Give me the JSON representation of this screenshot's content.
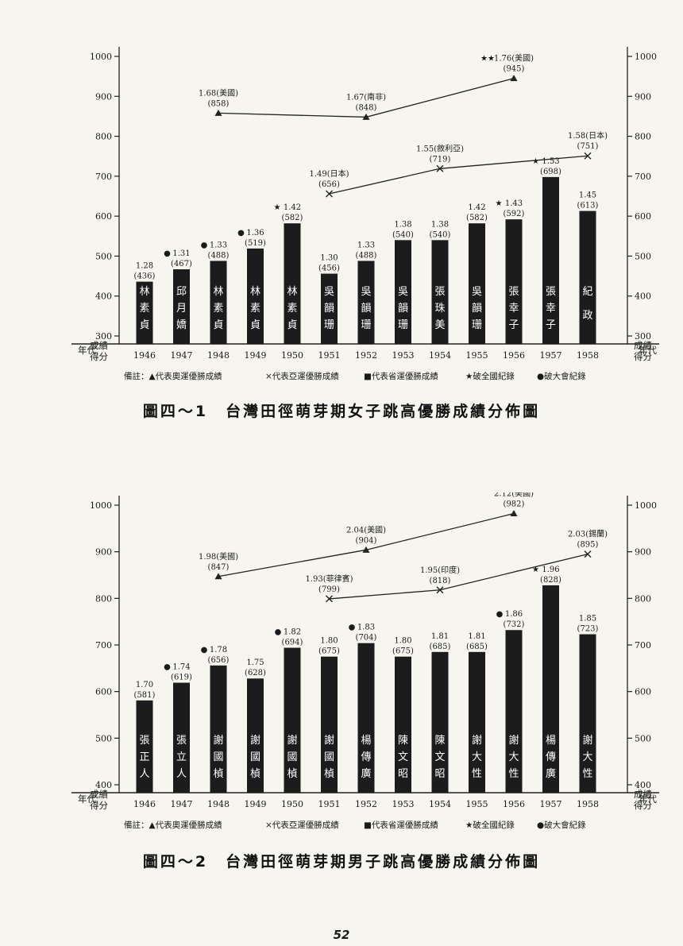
{
  "page_number": "52",
  "legend": {
    "prefix": "備註：",
    "olympic": "▲代表奧運優勝成績",
    "asian": "×代表亞運優勝成績",
    "provincial": "■代表省運優勝成績",
    "national_record": "★破全國紀錄",
    "meet_record": "●破大會紀錄"
  },
  "axis": {
    "score_label_1": "成績",
    "score_label_2": "得分",
    "year_label": "年代"
  },
  "chart_data": [
    {
      "type": "bar",
      "title": "圖四～1　台灣田徑萌芽期女子跳高優勝成績分佈圖",
      "ylim": [
        300,
        1000
      ],
      "yticks": [
        1000,
        900,
        800,
        700,
        600,
        500,
        400,
        300
      ],
      "categories": [
        "1946",
        "1947",
        "1948",
        "1949",
        "1950",
        "1951",
        "1952",
        "1953",
        "1954",
        "1955",
        "1956",
        "1957",
        "1958"
      ],
      "bar_color": "#1c1c1c",
      "bars": [
        {
          "year": "1946",
          "mark": "1.28",
          "score": 436,
          "athlete": "林素貞",
          "record": ""
        },
        {
          "year": "1947",
          "mark": "1.31",
          "score": 467,
          "athlete": "邱月嬌",
          "record": "meet"
        },
        {
          "year": "1948",
          "mark": "1.33",
          "score": 488,
          "athlete": "林素貞",
          "record": "meet"
        },
        {
          "year": "1949",
          "mark": "1.36",
          "score": 519,
          "athlete": "林素貞",
          "record": "meet"
        },
        {
          "year": "1950",
          "mark": "1.42",
          "score": 582,
          "athlete": "林素貞",
          "record": "national"
        },
        {
          "year": "1951",
          "mark": "1.30",
          "score": 456,
          "athlete": "吳韻珊",
          "record": ""
        },
        {
          "year": "1952",
          "mark": "1.33",
          "score": 488,
          "athlete": "吳韻珊",
          "record": ""
        },
        {
          "year": "1953",
          "mark": "1.38",
          "score": 540,
          "athlete": "吳韻珊",
          "record": ""
        },
        {
          "year": "1954",
          "mark": "1.38",
          "score": 540,
          "athlete": "張珠美",
          "record": ""
        },
        {
          "year": "1955",
          "mark": "1.42",
          "score": 582,
          "athlete": "吳韻珊",
          "record": ""
        },
        {
          "year": "1956",
          "mark": "1.43",
          "score": 592,
          "athlete": "張幸子",
          "record": "national"
        },
        {
          "year": "1957",
          "mark": "1.53",
          "score": 698,
          "athlete": "張幸子",
          "record": "national"
        },
        {
          "year": "1958",
          "mark": "1.45",
          "score": 613,
          "athlete": "紀政",
          "record": ""
        }
      ],
      "olympic": [
        {
          "year": "1948",
          "mark": "1.68",
          "country": "美國",
          "score": 858,
          "record": ""
        },
        {
          "year": "1952",
          "mark": "1.67",
          "country": "南非",
          "score": 848,
          "record": ""
        },
        {
          "year": "1956",
          "mark": "1.76",
          "country": "美國",
          "score": 945,
          "record": "world2"
        }
      ],
      "asian": [
        {
          "year": "1951",
          "mark": "1.49",
          "country": "日本",
          "score": 656
        },
        {
          "year": "1954",
          "mark": "1.55",
          "country": "敘利亞",
          "score": 719
        },
        {
          "year": "1958",
          "mark": "1.58",
          "country": "日本",
          "score": 751
        }
      ]
    },
    {
      "type": "bar",
      "title": "圖四～2　台灣田徑萌芽期男子跳高優勝成績分佈圖",
      "ylim": [
        400,
        1000
      ],
      "yticks": [
        1000,
        900,
        800,
        700,
        600,
        500,
        400
      ],
      "categories": [
        "1946",
        "1947",
        "1948",
        "1949",
        "1950",
        "1951",
        "1952",
        "1953",
        "1954",
        "1955",
        "1956",
        "1957",
        "1958"
      ],
      "bar_color": "#1c1c1c",
      "bars": [
        {
          "year": "1946",
          "mark": "1.70",
          "score": 581,
          "athlete": "張正人",
          "record": ""
        },
        {
          "year": "1947",
          "mark": "1.74",
          "score": 619,
          "athlete": "張立人",
          "record": "meet"
        },
        {
          "year": "1948",
          "mark": "1.78",
          "score": 656,
          "athlete": "謝國楨",
          "record": "meet"
        },
        {
          "year": "1949",
          "mark": "1.75",
          "score": 628,
          "athlete": "謝國楨",
          "record": ""
        },
        {
          "year": "1950",
          "mark": "1.82",
          "score": 694,
          "athlete": "謝國楨",
          "record": "meet"
        },
        {
          "year": "1951",
          "mark": "1.80",
          "score": 675,
          "athlete": "謝國楨",
          "record": ""
        },
        {
          "year": "1952",
          "mark": "1.83",
          "score": 704,
          "athlete": "楊傳廣",
          "record": "meet"
        },
        {
          "year": "1953",
          "mark": "1.80",
          "score": 675,
          "athlete": "陳文昭",
          "record": ""
        },
        {
          "year": "1954",
          "mark": "1.81",
          "score": 685,
          "athlete": "陳文昭",
          "record": ""
        },
        {
          "year": "1955",
          "mark": "1.81",
          "score": 685,
          "athlete": "謝大性",
          "record": ""
        },
        {
          "year": "1956",
          "mark": "1.86",
          "score": 732,
          "athlete": "謝大性",
          "record": "meet"
        },
        {
          "year": "1957",
          "mark": "1.96",
          "score": 828,
          "athlete": "楊傳廣",
          "record": "national"
        },
        {
          "year": "1958",
          "mark": "1.85",
          "score": 723,
          "athlete": "謝大性",
          "record": ""
        }
      ],
      "olympic": [
        {
          "year": "1948",
          "mark": "1.98",
          "country": "美國",
          "score": 847,
          "record": ""
        },
        {
          "year": "1952",
          "mark": "2.04",
          "country": "美國",
          "score": 904,
          "record": ""
        },
        {
          "year": "1956",
          "mark": "2.12",
          "country": "美國",
          "score": 982,
          "record": ""
        }
      ],
      "asian": [
        {
          "year": "1951",
          "mark": "1.93",
          "country": "菲律賓",
          "score": 799
        },
        {
          "year": "1954",
          "mark": "1.95",
          "country": "印度",
          "score": 818
        },
        {
          "year": "1958",
          "mark": "2.03",
          "country": "錫蘭",
          "score": 895
        }
      ]
    }
  ]
}
